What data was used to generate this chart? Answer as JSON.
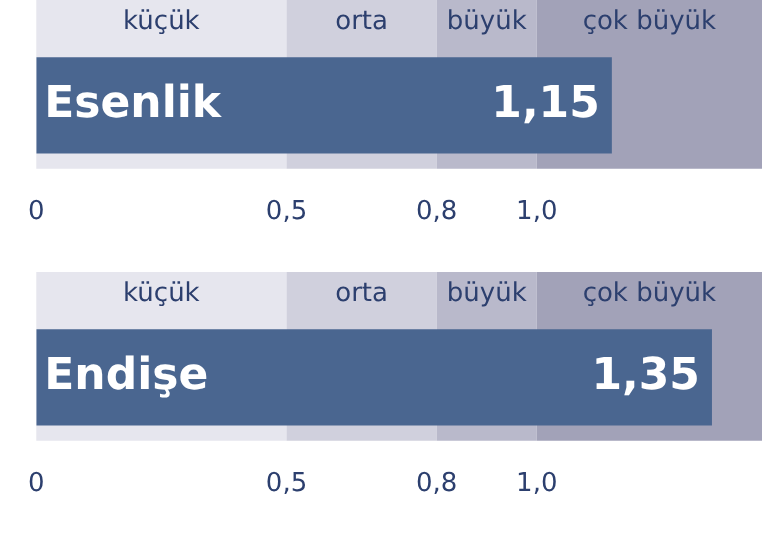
{
  "chart_data": [
    {
      "type": "bar",
      "orientation": "horizontal",
      "categories": [
        "Esenlik"
      ],
      "values": [
        1.15
      ],
      "color": "#4a6690",
      "data_labels": true,
      "value_labels": [
        "1,15"
      ],
      "xlim": [
        0,
        1.45
      ],
      "xticks": [
        0,
        {
          "value": 0.5,
          "label": "0,5"
        },
        {
          "value": 0.8,
          "label": "0,8"
        },
        {
          "value": 1.0,
          "label": "1,0"
        }
      ],
      "grid": false,
      "legend": false,
      "bands": [
        {
          "axis": "x",
          "from": 0,
          "to": 0.5,
          "label": "küçük",
          "color": "#e6e6ee"
        },
        {
          "axis": "x",
          "from": 0.5,
          "to": 0.8,
          "label": "orta",
          "color": "#d0d0dd"
        },
        {
          "axis": "x",
          "from": 0.8,
          "to": 1.0,
          "label": "büyük",
          "color": "#b9b9cb"
        },
        {
          "axis": "x",
          "from": 1.0,
          "to": 1.45,
          "label": "çok büyük",
          "color": "#a2a2b8"
        }
      ]
    },
    {
      "type": "bar",
      "orientation": "horizontal",
      "categories": [
        "Endişe"
      ],
      "values": [
        1.35
      ],
      "color": "#4a6690",
      "data_labels": true,
      "value_labels": [
        "1,35"
      ],
      "xlim": [
        0,
        1.45
      ],
      "xticks": [
        0,
        {
          "value": 0.5,
          "label": "0,5"
        },
        {
          "value": 0.8,
          "label": "0,8"
        },
        {
          "value": 1.0,
          "label": "1,0"
        }
      ],
      "grid": false,
      "legend": false,
      "bands": [
        {
          "axis": "x",
          "from": 0,
          "to": 0.5,
          "label": "küçük",
          "color": "#e6e6ee"
        },
        {
          "axis": "x",
          "from": 0.5,
          "to": 0.8,
          "label": "orta",
          "color": "#d0d0dd"
        },
        {
          "axis": "x",
          "from": 0.8,
          "to": 1.0,
          "label": "büyük",
          "color": "#b9b9cb"
        },
        {
          "axis": "x",
          "from": 1.0,
          "to": 1.45,
          "label": "çok büyük",
          "color": "#a2a2b8"
        }
      ]
    }
  ]
}
